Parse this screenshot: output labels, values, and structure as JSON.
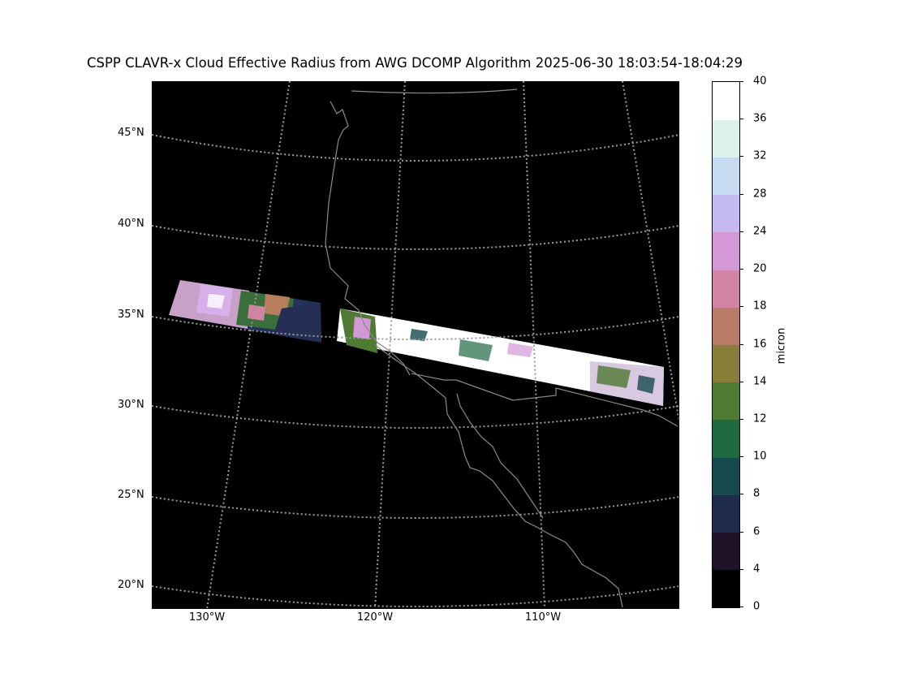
{
  "title": "CSPP CLAVR-x Cloud Effective Radius from AWG DCOMP Algorithm 2025-06-30 18:03:54-18:04:29",
  "lat_labels": [
    "45°N",
    "40°N",
    "35°N",
    "30°N",
    "25°N",
    "20°N"
  ],
  "lon_labels": [
    "130°W",
    "120°W",
    "110°W"
  ],
  "colorbar": {
    "label": "micron",
    "ticks": [
      "0",
      "4",
      "6",
      "8",
      "10",
      "12",
      "14",
      "16",
      "18",
      "20",
      "24",
      "28",
      "32",
      "36",
      "40"
    ],
    "colors": [
      "#000000",
      "#1e1128",
      "#1f2b4a",
      "#164a4f",
      "#1e6a43",
      "#4e7a34",
      "#8a7e3b",
      "#b87c67",
      "#d285a3",
      "#d398d5",
      "#c4b9f1",
      "#c6daf2",
      "#daf1ec",
      "#ffffff"
    ]
  },
  "colors": {
    "map_background": "#000000",
    "gridline": "#9a9a9a",
    "coastline": "#8a8a8a"
  }
}
